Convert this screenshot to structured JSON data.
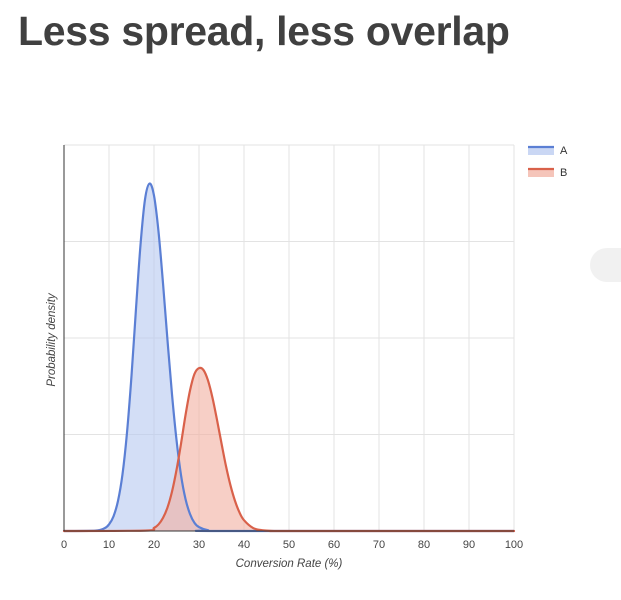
{
  "page": {
    "title": "Less spread, less overlap"
  },
  "chart_data": {
    "type": "area",
    "xlabel": "Conversion Rate (%)",
    "ylabel": "Probability density",
    "xlim": [
      0,
      100
    ],
    "ylim": [
      0,
      0.1
    ],
    "x_ticks": [
      0,
      10,
      20,
      30,
      40,
      50,
      60,
      70,
      80,
      90,
      100
    ],
    "grid": true,
    "legend_position": "top-right",
    "series": [
      {
        "name": "A",
        "color": "#5b7fd4",
        "fill": "#b8caf0",
        "x": [
          0,
          7,
          9,
          10,
          11,
          12,
          13,
          14,
          15,
          16,
          17,
          18,
          19,
          20,
          21,
          22,
          23,
          24,
          25,
          26,
          27,
          28,
          29,
          30,
          32,
          35,
          100
        ],
        "values": [
          0,
          0.0001,
          0.0007,
          0.0017,
          0.0038,
          0.0078,
          0.0147,
          0.0255,
          0.0402,
          0.0576,
          0.0741,
          0.0859,
          0.09,
          0.0869,
          0.0776,
          0.0642,
          0.0494,
          0.0354,
          0.0236,
          0.0145,
          0.0083,
          0.0044,
          0.0021,
          0.001,
          0.0002,
          0.0,
          0.0
        ]
      },
      {
        "name": "B",
        "color": "#d9614a",
        "fill": "#f2b2a3",
        "x": [
          0,
          18,
          20,
          21,
          22,
          23,
          24,
          25,
          26,
          27,
          28,
          29,
          30,
          31,
          32,
          33,
          34,
          35,
          36,
          37,
          38,
          39,
          40,
          42,
          44,
          46,
          48,
          50,
          100
        ],
        "values": [
          0,
          0.0001,
          0.0008,
          0.0017,
          0.0034,
          0.0061,
          0.0102,
          0.0158,
          0.0226,
          0.03,
          0.0364,
          0.0407,
          0.0422,
          0.0417,
          0.039,
          0.0345,
          0.0288,
          0.0227,
          0.0168,
          0.0118,
          0.0078,
          0.0048,
          0.0028,
          0.0008,
          0.0002,
          5e-05,
          1e-05,
          0.0,
          0.0
        ]
      }
    ]
  }
}
